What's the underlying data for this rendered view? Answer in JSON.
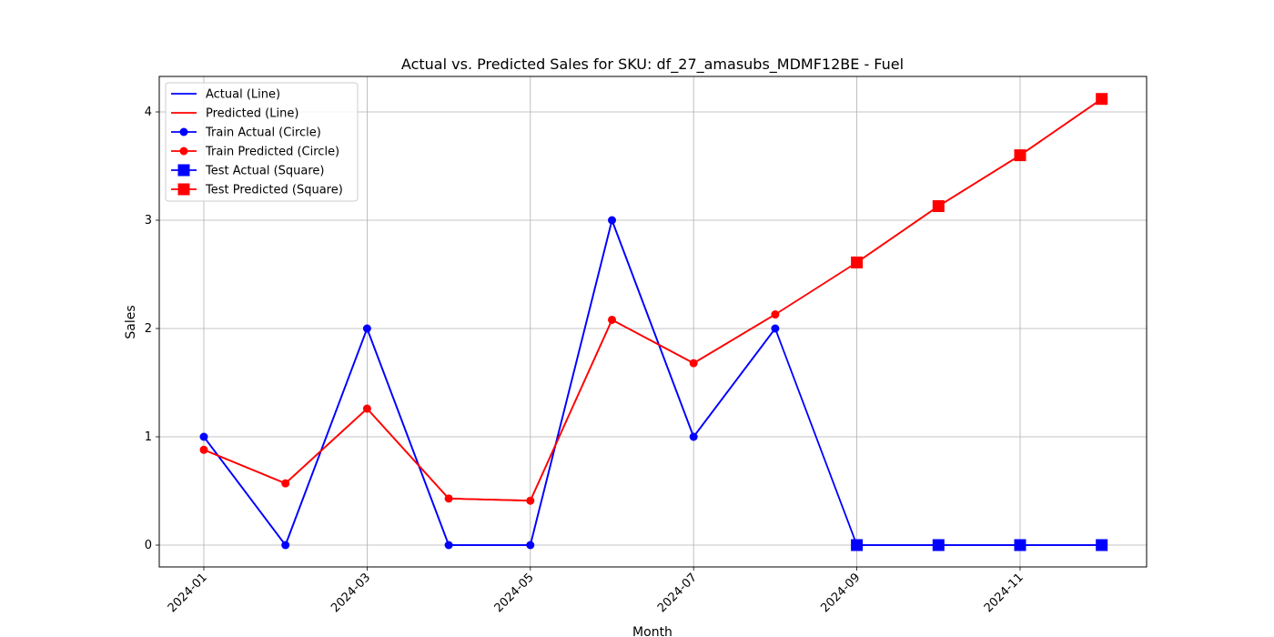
{
  "chart_data": {
    "type": "line",
    "title": "Actual vs. Predicted Sales for SKU: df_27_amasubs_MDMF12BE - Fuel",
    "xlabel": "Month",
    "ylabel": "Sales",
    "x": [
      "2024-01",
      "2024-02",
      "2024-03",
      "2024-04",
      "2024-05",
      "2024-06",
      "2024-07",
      "2024-08",
      "2024-09",
      "2024-10",
      "2024-11",
      "2024-12"
    ],
    "xticks": [
      "2024-01",
      "2024-03",
      "2024-05",
      "2024-07",
      "2024-09",
      "2024-11"
    ],
    "yticks": [
      0,
      1,
      2,
      3,
      4
    ],
    "ylim": [
      -0.2,
      4.32
    ],
    "grid": true,
    "legend_position": "top-left",
    "series": [
      {
        "name": "Actual (Line)",
        "role": "line",
        "color": "#0000ff",
        "values": [
          1,
          0,
          2,
          0,
          0,
          3,
          1,
          2,
          0,
          0,
          0,
          0
        ]
      },
      {
        "name": "Predicted (Line)",
        "role": "line",
        "color": "#ff0000",
        "values": [
          0.88,
          0.57,
          1.26,
          0.43,
          0.41,
          2.08,
          1.68,
          2.13,
          2.61,
          3.13,
          3.6,
          4.12
        ]
      },
      {
        "name": "Train Actual (Circle)",
        "role": "marker",
        "marker": "circle",
        "color": "#0000ff",
        "x": [
          "2024-01",
          "2024-02",
          "2024-03",
          "2024-04",
          "2024-05",
          "2024-06",
          "2024-07",
          "2024-08"
        ],
        "values": [
          1,
          0,
          2,
          0,
          0,
          3,
          1,
          2
        ]
      },
      {
        "name": "Train Predicted (Circle)",
        "role": "marker",
        "marker": "circle",
        "color": "#ff0000",
        "x": [
          "2024-01",
          "2024-02",
          "2024-03",
          "2024-04",
          "2024-05",
          "2024-06",
          "2024-07",
          "2024-08"
        ],
        "values": [
          0.88,
          0.57,
          1.26,
          0.43,
          0.41,
          2.08,
          1.68,
          2.13
        ]
      },
      {
        "name": "Test Actual (Square)",
        "role": "marker",
        "marker": "square",
        "color": "#0000ff",
        "x": [
          "2024-09",
          "2024-10",
          "2024-11",
          "2024-12"
        ],
        "values": [
          0,
          0,
          0,
          0
        ]
      },
      {
        "name": "Test Predicted (Square)",
        "role": "marker",
        "marker": "square",
        "color": "#ff0000",
        "x": [
          "2024-09",
          "2024-10",
          "2024-11",
          "2024-12"
        ],
        "values": [
          2.61,
          3.13,
          3.6,
          4.12
        ]
      }
    ]
  }
}
